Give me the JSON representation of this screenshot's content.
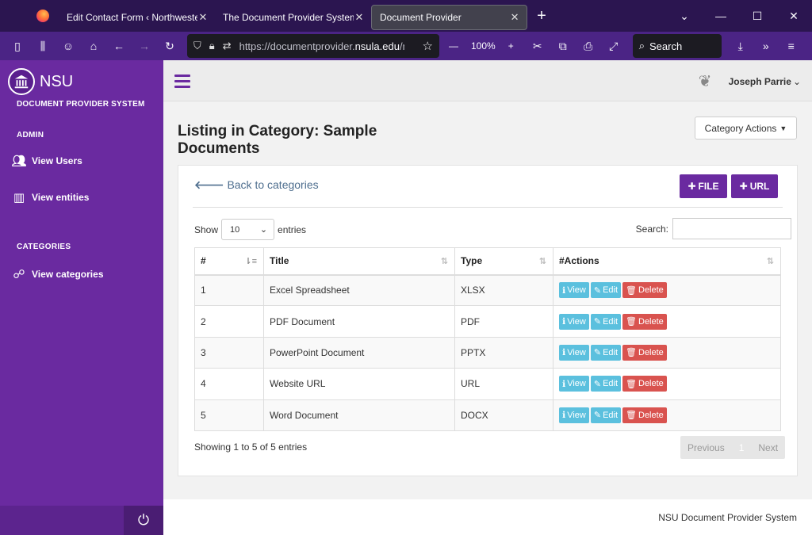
{
  "browser": {
    "tabs": [
      {
        "title": "Edit Contact Form ‹ Northwestern St",
        "active": false
      },
      {
        "title": "The Document Provider System – NS",
        "active": false
      },
      {
        "title": "Document Provider",
        "active": true
      }
    ],
    "url_prefix": "https://documentprovider.",
    "url_domain": "nsula.edu",
    "url_suffix": "/m",
    "zoom": "100%",
    "search_placeholder": "Search"
  },
  "sidebar": {
    "brand": "NSU",
    "subtitle": "DOCUMENT PROVIDER SYSTEM",
    "sections": [
      {
        "label": "ADMIN",
        "items": [
          {
            "label": "View Users",
            "icon": "users-icon"
          },
          {
            "label": "View entities",
            "icon": "building-icon"
          }
        ]
      },
      {
        "label": "CATEGORIES",
        "items": [
          {
            "label": "View categories",
            "icon": "sitemap-icon"
          }
        ]
      }
    ]
  },
  "header": {
    "user_name": "Joseph Parrie"
  },
  "main": {
    "title": "Listing in Category: Sample Documents",
    "category_actions": "Category Actions",
    "back_label": "Back to categories",
    "add_file_label": "FILE",
    "add_url_label": "URL",
    "show_label": "Show",
    "entries_value": "10",
    "entries_label": "entries",
    "search_label": "Search:",
    "columns": [
      "#",
      "Title",
      "Type",
      "#Actions"
    ],
    "rows": [
      {
        "num": "1",
        "title": "Excel Spreadsheet",
        "type": "XLSX"
      },
      {
        "num": "2",
        "title": "PDF Document",
        "type": "PDF"
      },
      {
        "num": "3",
        "title": "PowerPoint Document",
        "type": "PPTX"
      },
      {
        "num": "4",
        "title": "Website URL",
        "type": "URL"
      },
      {
        "num": "5",
        "title": "Word Document",
        "type": "DOCX"
      }
    ],
    "actions": {
      "view": "View",
      "edit": "Edit",
      "delete": "Delete"
    },
    "info": "Showing 1 to 5 of 5 entries",
    "pager": {
      "prev": "Previous",
      "current": "1",
      "next": "Next"
    }
  },
  "footer": {
    "text": "NSU Document Provider System"
  },
  "colors": {
    "sidebar": "#6a2aa0",
    "accent": "#6a2aa0",
    "info_btn": "#5bc0de",
    "danger_btn": "#d9534f"
  }
}
